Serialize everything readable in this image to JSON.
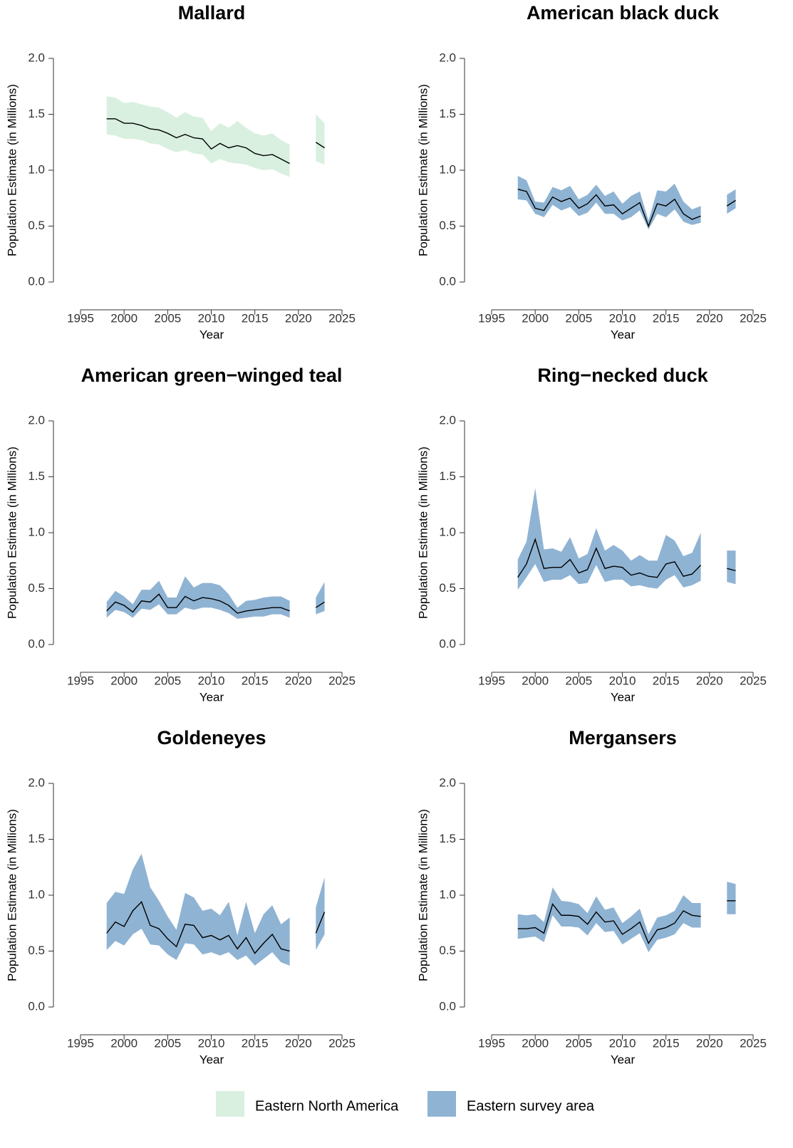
{
  "chart_data": [
    {
      "type": "line",
      "title": "Mallard",
      "xlabel": "Year",
      "ylabel": "Population Estimate (in Millions)",
      "x": [
        1998,
        1999,
        2000,
        2001,
        2002,
        2003,
        2004,
        2005,
        2006,
        2007,
        2008,
        2009,
        2010,
        2011,
        2012,
        2013,
        2014,
        2015,
        2016,
        2017,
        2018,
        2019,
        2020,
        2021,
        2022,
        2023
      ],
      "values": [
        1.46,
        1.46,
        1.42,
        1.42,
        1.4,
        1.37,
        1.36,
        1.33,
        1.29,
        1.32,
        1.29,
        1.28,
        1.19,
        1.24,
        1.2,
        1.22,
        1.2,
        1.15,
        1.13,
        1.14,
        1.1,
        1.06,
        null,
        null,
        1.25,
        1.2
      ],
      "upper": [
        1.66,
        1.65,
        1.6,
        1.61,
        1.59,
        1.57,
        1.56,
        1.52,
        1.47,
        1.52,
        1.48,
        1.47,
        1.35,
        1.42,
        1.38,
        1.44,
        1.38,
        1.33,
        1.31,
        1.33,
        1.27,
        1.23,
        null,
        null,
        1.5,
        1.42
      ],
      "lower": [
        1.32,
        1.31,
        1.28,
        1.28,
        1.27,
        1.24,
        1.23,
        1.19,
        1.16,
        1.18,
        1.15,
        1.14,
        1.06,
        1.1,
        1.07,
        1.06,
        1.05,
        1.02,
        1.0,
        1.01,
        0.97,
        0.94,
        null,
        null,
        1.08,
        1.05
      ],
      "band_color": "#d9f0e0",
      "line_color": "#000000",
      "xlim": [
        1995,
        2025
      ],
      "xticks": [
        1995,
        2000,
        2005,
        2010,
        2015,
        2020,
        2025
      ],
      "ylim": [
        0,
        2
      ],
      "yticks": [
        {
          "value": 0,
          "label": "0.0"
        },
        0.5,
        {
          "value": 1,
          "label": "1.0"
        },
        1.5,
        {
          "value": 2,
          "label": "2.0"
        }
      ]
    },
    {
      "type": "line",
      "title": "American black duck",
      "xlabel": "Year",
      "ylabel": "Population Estimate (in Millions)",
      "x": [
        1998,
        1999,
        2000,
        2001,
        2002,
        2003,
        2004,
        2005,
        2006,
        2007,
        2008,
        2009,
        2010,
        2011,
        2012,
        2013,
        2014,
        2015,
        2016,
        2017,
        2018,
        2019,
        2020,
        2021,
        2022,
        2023
      ],
      "values": [
        0.83,
        0.81,
        0.66,
        0.64,
        0.76,
        0.72,
        0.75,
        0.66,
        0.7,
        0.78,
        0.68,
        0.69,
        0.61,
        0.66,
        0.71,
        0.5,
        0.7,
        0.68,
        0.74,
        0.61,
        0.56,
        0.59,
        null,
        null,
        0.68,
        0.73
      ],
      "upper": [
        0.95,
        0.91,
        0.72,
        0.71,
        0.85,
        0.82,
        0.86,
        0.74,
        0.78,
        0.87,
        0.77,
        0.81,
        0.7,
        0.77,
        0.81,
        0.55,
        0.82,
        0.81,
        0.88,
        0.72,
        0.65,
        0.68,
        null,
        null,
        0.78,
        0.83
      ],
      "lower": [
        0.74,
        0.73,
        0.61,
        0.58,
        0.69,
        0.64,
        0.67,
        0.59,
        0.62,
        0.71,
        0.61,
        0.61,
        0.55,
        0.58,
        0.64,
        0.47,
        0.61,
        0.58,
        0.65,
        0.54,
        0.51,
        0.53,
        null,
        null,
        0.61,
        0.66
      ],
      "band_color": "#8fb3d3",
      "line_color": "#000000",
      "xlim": [
        1995,
        2025
      ],
      "xticks": [
        1995,
        2000,
        2005,
        2010,
        2015,
        2020,
        2025
      ],
      "ylim": [
        0,
        2
      ],
      "yticks": [
        {
          "value": 0,
          "label": "0.0"
        },
        0.5,
        {
          "value": 1,
          "label": "1.0"
        },
        1.5,
        {
          "value": 2,
          "label": "2.0"
        }
      ]
    },
    {
      "type": "line",
      "title": "American green−winged teal",
      "xlabel": "Year",
      "ylabel": "Population Estimate (in Millions)",
      "x": [
        1998,
        1999,
        2000,
        2001,
        2002,
        2003,
        2004,
        2005,
        2006,
        2007,
        2008,
        2009,
        2010,
        2011,
        2012,
        2013,
        2014,
        2015,
        2016,
        2017,
        2018,
        2019,
        2020,
        2021,
        2022,
        2023
      ],
      "values": [
        0.3,
        0.38,
        0.35,
        0.29,
        0.39,
        0.38,
        0.45,
        0.33,
        0.33,
        0.43,
        0.39,
        0.42,
        0.41,
        0.39,
        0.35,
        0.28,
        0.3,
        0.31,
        0.32,
        0.33,
        0.33,
        0.3,
        null,
        null,
        0.33,
        0.38
      ],
      "upper": [
        0.38,
        0.48,
        0.43,
        0.36,
        0.49,
        0.49,
        0.57,
        0.42,
        0.42,
        0.61,
        0.51,
        0.55,
        0.55,
        0.53,
        0.45,
        0.33,
        0.39,
        0.4,
        0.42,
        0.43,
        0.43,
        0.39,
        null,
        null,
        0.42,
        0.56
      ],
      "lower": [
        0.24,
        0.31,
        0.29,
        0.24,
        0.32,
        0.31,
        0.36,
        0.27,
        0.27,
        0.33,
        0.31,
        0.33,
        0.33,
        0.31,
        0.28,
        0.23,
        0.24,
        0.25,
        0.25,
        0.27,
        0.27,
        0.24,
        null,
        null,
        0.27,
        0.3
      ],
      "band_color": "#8fb3d3",
      "line_color": "#000000",
      "xlim": [
        1995,
        2025
      ],
      "xticks": [
        1995,
        2000,
        2005,
        2010,
        2015,
        2020,
        2025
      ],
      "ylim": [
        0,
        2
      ],
      "yticks": [
        {
          "value": 0,
          "label": "0.0"
        },
        0.5,
        {
          "value": 1,
          "label": "1.0"
        },
        1.5,
        {
          "value": 2,
          "label": "2.0"
        }
      ]
    },
    {
      "type": "line",
      "title": "Ring−necked duck",
      "xlabel": "Year",
      "ylabel": "Population Estimate (in Millions)",
      "x": [
        1998,
        1999,
        2000,
        2001,
        2002,
        2003,
        2004,
        2005,
        2006,
        2007,
        2008,
        2009,
        2010,
        2011,
        2012,
        2013,
        2014,
        2015,
        2016,
        2017,
        2018,
        2019,
        2020,
        2021,
        2022,
        2023
      ],
      "values": [
        0.6,
        0.72,
        0.94,
        0.68,
        0.69,
        0.69,
        0.76,
        0.64,
        0.67,
        0.86,
        0.68,
        0.7,
        0.69,
        0.62,
        0.64,
        0.61,
        0.6,
        0.72,
        0.74,
        0.61,
        0.63,
        0.71,
        null,
        null,
        0.68,
        0.66
      ],
      "upper": [
        0.76,
        0.92,
        1.4,
        0.85,
        0.86,
        0.83,
        0.96,
        0.77,
        0.81,
        1.04,
        0.84,
        0.89,
        0.84,
        0.75,
        0.8,
        0.75,
        0.75,
        0.98,
        0.93,
        0.79,
        0.82,
        1.0,
        null,
        null,
        0.84,
        0.84
      ],
      "lower": [
        0.49,
        0.6,
        0.72,
        0.56,
        0.58,
        0.58,
        0.62,
        0.54,
        0.55,
        0.71,
        0.56,
        0.58,
        0.58,
        0.52,
        0.53,
        0.51,
        0.5,
        0.58,
        0.62,
        0.51,
        0.53,
        0.57,
        null,
        null,
        0.56,
        0.54
      ],
      "band_color": "#8fb3d3",
      "line_color": "#000000",
      "xlim": [
        1995,
        2025
      ],
      "xticks": [
        1995,
        2000,
        2005,
        2010,
        2015,
        2020,
        2025
      ],
      "ylim": [
        0,
        2
      ],
      "yticks": [
        {
          "value": 0,
          "label": "0.0"
        },
        0.5,
        {
          "value": 1,
          "label": "1.0"
        },
        1.5,
        {
          "value": 2,
          "label": "2.0"
        }
      ]
    },
    {
      "type": "line",
      "title": "Goldeneyes",
      "xlabel": "Year",
      "ylabel": "Population Estimate (in Millions)",
      "x": [
        1998,
        1999,
        2000,
        2001,
        2002,
        2003,
        2004,
        2005,
        2006,
        2007,
        2008,
        2009,
        2010,
        2011,
        2012,
        2013,
        2014,
        2015,
        2016,
        2017,
        2018,
        2019,
        2020,
        2021,
        2022,
        2023
      ],
      "values": [
        0.66,
        0.76,
        0.72,
        0.86,
        0.94,
        0.73,
        0.7,
        0.61,
        0.54,
        0.74,
        0.73,
        0.62,
        0.64,
        0.6,
        0.64,
        0.52,
        0.62,
        0.48,
        0.57,
        0.65,
        0.52,
        0.5,
        null,
        null,
        0.66,
        0.85
      ],
      "upper": [
        0.93,
        1.03,
        1.01,
        1.23,
        1.37,
        1.07,
        0.95,
        0.81,
        0.69,
        1.02,
        0.98,
        0.86,
        0.88,
        0.82,
        0.94,
        0.64,
        0.94,
        0.66,
        0.83,
        0.91,
        0.74,
        0.8,
        null,
        null,
        0.89,
        1.16
      ],
      "lower": [
        0.51,
        0.59,
        0.55,
        0.65,
        0.7,
        0.56,
        0.55,
        0.47,
        0.42,
        0.57,
        0.56,
        0.47,
        0.49,
        0.46,
        0.49,
        0.42,
        0.46,
        0.37,
        0.43,
        0.49,
        0.4,
        0.37,
        null,
        null,
        0.51,
        0.65
      ],
      "band_color": "#8fb3d3",
      "line_color": "#000000",
      "xlim": [
        1995,
        2025
      ],
      "xticks": [
        1995,
        2000,
        2005,
        2010,
        2015,
        2020,
        2025
      ],
      "ylim": [
        0,
        2
      ],
      "yticks": [
        {
          "value": 0,
          "label": "0.0"
        },
        0.5,
        {
          "value": 1,
          "label": "1.0"
        },
        1.5,
        {
          "value": 2,
          "label": "2.0"
        }
      ]
    },
    {
      "type": "line",
      "title": "Mergansers",
      "xlabel": "Year",
      "ylabel": "Population Estimate (in Millions)",
      "x": [
        1998,
        1999,
        2000,
        2001,
        2002,
        2003,
        2004,
        2005,
        2006,
        2007,
        2008,
        2009,
        2010,
        2011,
        2012,
        2013,
        2014,
        2015,
        2016,
        2017,
        2018,
        2019,
        2020,
        2021,
        2022,
        2023
      ],
      "values": [
        0.7,
        0.7,
        0.71,
        0.66,
        0.92,
        0.82,
        0.82,
        0.81,
        0.74,
        0.85,
        0.76,
        0.77,
        0.65,
        0.7,
        0.76,
        0.57,
        0.69,
        0.71,
        0.75,
        0.86,
        0.82,
        0.81,
        null,
        null,
        0.95,
        0.95
      ],
      "upper": [
        0.83,
        0.82,
        0.83,
        0.76,
        1.07,
        0.95,
        0.94,
        0.92,
        0.84,
        0.99,
        0.87,
        0.89,
        0.75,
        0.81,
        0.88,
        0.65,
        0.8,
        0.82,
        0.86,
        1.0,
        0.93,
        0.93,
        null,
        null,
        1.12,
        1.1
      ],
      "lower": [
        0.61,
        0.62,
        0.63,
        0.58,
        0.82,
        0.72,
        0.72,
        0.71,
        0.64,
        0.75,
        0.67,
        0.68,
        0.56,
        0.61,
        0.66,
        0.49,
        0.6,
        0.62,
        0.65,
        0.75,
        0.71,
        0.71,
        null,
        null,
        0.83,
        0.83
      ],
      "band_color": "#8fb3d3",
      "line_color": "#000000",
      "xlim": [
        1995,
        2025
      ],
      "xticks": [
        1995,
        2000,
        2005,
        2010,
        2015,
        2020,
        2025
      ],
      "ylim": [
        0,
        2
      ],
      "yticks": [
        {
          "value": 0,
          "label": "0.0"
        },
        0.5,
        {
          "value": 1,
          "label": "1.0"
        },
        1.5,
        {
          "value": 2,
          "label": "2.0"
        }
      ]
    }
  ],
  "legend": [
    {
      "name": "Eastern North America",
      "color": "#d9f0e0"
    },
    {
      "name": "Eastern survey area",
      "color": "#8fb3d3"
    }
  ]
}
